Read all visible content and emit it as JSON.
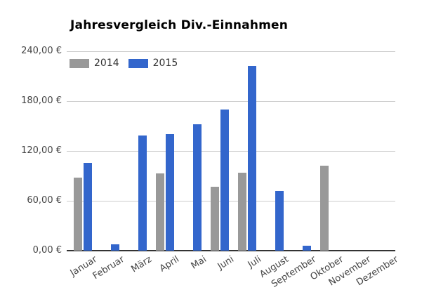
{
  "title": "Jahresvergleich Div.-Einnahmen",
  "chart_data": {
    "type": "bar",
    "title": "Jahresvergleich Div.-Einnahmen",
    "categories": [
      "Januar",
      "Februar",
      "März",
      "April",
      "Mai",
      "Juni",
      "Juli",
      "August",
      "September",
      "Oktober",
      "November",
      "Dezember"
    ],
    "series": [
      {
        "name": "2014",
        "color": "#999999",
        "values": [
          88,
          0,
          0,
          93,
          0,
          77,
          94,
          0,
          0,
          102,
          0,
          0
        ]
      },
      {
        "name": "2015",
        "color": "#3366cc",
        "values": [
          106,
          8,
          139,
          140,
          152,
          170,
          222,
          72,
          6,
          0,
          0,
          0
        ]
      }
    ],
    "xlabel": "",
    "ylabel": "",
    "ylim": [
      0,
      240
    ],
    "yticks": [
      {
        "value": 0,
        "label": "0,00 €"
      },
      {
        "value": 60,
        "label": "60,00 €"
      },
      {
        "value": 120,
        "label": "120,00 €"
      },
      {
        "value": 180,
        "label": "180,00 €"
      },
      {
        "value": 240,
        "label": "240,00 €"
      }
    ],
    "grid": true,
    "legend_position": "top-left-inside",
    "currency": "€"
  },
  "colors": {
    "grid": "#cccccc",
    "axis": "#333333",
    "tick_label": "#444444",
    "series_2014": "#999999",
    "series_2015": "#3366cc"
  }
}
